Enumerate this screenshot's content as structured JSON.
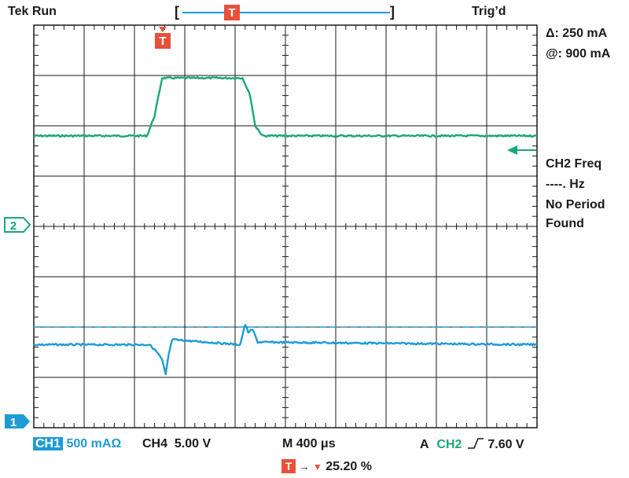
{
  "header": {
    "status": "Tek Run",
    "trigger_state": "Trig’d",
    "bracket_left": "[",
    "bracket_right": "]",
    "t_marker": "T"
  },
  "measurements": {
    "delta": "Δ: 250 mA",
    "at": "@: 900 mA"
  },
  "freq_panel": {
    "line1": "CH2 Freq",
    "line2": "----. Hz",
    "line3": "No Period",
    "line4": "Found"
  },
  "markers": {
    "ch2": "2",
    "ch1": "1",
    "trigger": "T"
  },
  "footer": {
    "ch1_label": "CH1",
    "ch1_scale": "500 mAΩ",
    "ch4": "CH4  5.00 V",
    "timebase": "M 400 μs",
    "trigger_prefix": "A",
    "trigger_source": "CH2",
    "trigger_level": "7.60 V",
    "trig_pos_t": "T",
    "trig_pos_value": "25.20 %"
  },
  "colors": {
    "ch2_green": "#19a974",
    "ch1_blue": "#1e9bd7",
    "trigger_red": "#e8503a",
    "grid": "#1a1a1a"
  },
  "chart_data": {
    "type": "line",
    "x_divisions": 10,
    "y_divisions": 8,
    "x_unit": "div",
    "y_unit": "div",
    "trigger_position_percent": 25.2,
    "series": [
      {
        "name": "CH2",
        "color": "#19a974",
        "x": [
          0,
          2.25,
          2.4,
          2.55,
          2.9,
          4.15,
          4.3,
          4.4,
          4.55,
          10
        ],
        "y": [
          5.8,
          5.8,
          6.2,
          6.95,
          6.95,
          6.95,
          6.6,
          6.0,
          5.8,
          5.8
        ]
      },
      {
        "name": "CH1",
        "color": "#1e9bd7",
        "x": [
          0,
          2.3,
          2.45,
          2.55,
          2.62,
          2.68,
          2.75,
          4.1,
          4.15,
          4.2,
          4.26,
          4.35,
          4.45,
          10
        ],
        "y": [
          1.65,
          1.65,
          1.5,
          1.35,
          1.05,
          1.45,
          1.75,
          1.65,
          1.85,
          2.05,
          1.9,
          1.95,
          1.7,
          1.65
        ]
      },
      {
        "name": "CH4",
        "color": "#1e9bd7",
        "style": "dashed",
        "x": [
          0,
          10
        ],
        "y": [
          2.0,
          2.0
        ]
      }
    ]
  }
}
